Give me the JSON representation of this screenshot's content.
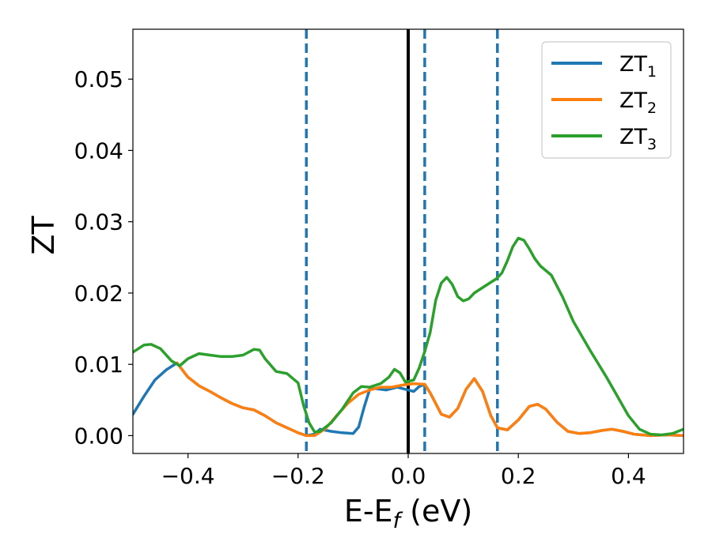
{
  "chart_data": {
    "type": "line",
    "xlabel": {
      "base": "E-E",
      "sub": "f",
      "suffix": " (eV)"
    },
    "ylabel": "ZT",
    "xlim": [
      -0.5,
      0.5
    ],
    "ylim": [
      -0.0025,
      0.057
    ],
    "xticks": [
      -0.4,
      -0.2,
      0.0,
      0.2,
      0.4
    ],
    "xtick_labels": [
      "−0.4",
      "−0.2",
      "0.0",
      "0.2",
      "0.4"
    ],
    "yticks": [
      0.0,
      0.01,
      0.02,
      0.03,
      0.04,
      0.05
    ],
    "ytick_labels": [
      "0.00",
      "0.01",
      "0.02",
      "0.03",
      "0.04",
      "0.05"
    ],
    "grid": false,
    "legend_position": "top-right",
    "vlines": [
      {
        "x": 0.0,
        "style": "solid",
        "color": "#000000"
      },
      {
        "x": -0.185,
        "style": "dashed",
        "color": "#1f77b4"
      },
      {
        "x": 0.03,
        "style": "dashed",
        "color": "#1f77b4"
      },
      {
        "x": 0.162,
        "style": "dashed",
        "color": "#1f77b4"
      }
    ],
    "series": [
      {
        "name": "ZT",
        "sub": "1",
        "color": "#1f77b4",
        "points": [
          [
            -0.5,
            0.003
          ],
          [
            -0.48,
            0.0055
          ],
          [
            -0.46,
            0.0078
          ],
          [
            -0.44,
            0.0092
          ],
          [
            -0.42,
            0.0102
          ],
          [
            -0.4,
            0.0082
          ],
          [
            -0.38,
            0.007
          ],
          [
            -0.36,
            0.0062
          ],
          [
            -0.34,
            0.0053
          ],
          [
            -0.32,
            0.0045
          ],
          [
            -0.3,
            0.0039
          ],
          [
            -0.28,
            0.0036
          ],
          [
            -0.26,
            0.0028
          ],
          [
            -0.24,
            0.0018
          ],
          [
            -0.22,
            0.0011
          ],
          [
            -0.2,
            0.0004
          ],
          [
            -0.185,
            0.0
          ],
          [
            -0.17,
            0.0002
          ],
          [
            -0.16,
            0.0009
          ],
          [
            -0.14,
            0.0006
          ],
          [
            -0.12,
            0.0004
          ],
          [
            -0.1,
            0.0003
          ],
          [
            -0.09,
            0.0012
          ],
          [
            -0.08,
            0.004
          ],
          [
            -0.07,
            0.0065
          ],
          [
            -0.06,
            0.0066
          ],
          [
            -0.04,
            0.0064
          ],
          [
            -0.02,
            0.0068
          ],
          [
            0.0,
            0.0064
          ],
          [
            0.01,
            0.0062
          ],
          [
            0.02,
            0.0069
          ],
          [
            0.03,
            0.0072
          ],
          [
            0.04,
            0.006
          ],
          [
            0.05,
            0.0045
          ],
          [
            0.06,
            0.003
          ],
          [
            0.075,
            0.0026
          ],
          [
            0.09,
            0.0038
          ],
          [
            0.105,
            0.0065
          ],
          [
            0.12,
            0.008
          ],
          [
            0.135,
            0.0062
          ],
          [
            0.15,
            0.0028
          ],
          [
            0.162,
            0.0011
          ],
          [
            0.18,
            0.0008
          ],
          [
            0.2,
            0.0022
          ],
          [
            0.22,
            0.0041
          ],
          [
            0.235,
            0.0044
          ],
          [
            0.25,
            0.0037
          ],
          [
            0.27,
            0.0019
          ],
          [
            0.29,
            0.0006
          ],
          [
            0.31,
            0.0003
          ],
          [
            0.33,
            0.0004
          ],
          [
            0.35,
            0.0007
          ],
          [
            0.37,
            0.0009
          ],
          [
            0.39,
            0.0006
          ],
          [
            0.41,
            0.0002
          ],
          [
            0.44,
            0.0
          ],
          [
            0.47,
            0.0001
          ],
          [
            0.5,
            0.0
          ]
        ]
      },
      {
        "name": "ZT",
        "sub": "2",
        "color": "#ff7f0e",
        "points": [
          [
            -0.42,
            0.0102
          ],
          [
            -0.4,
            0.0082
          ],
          [
            -0.38,
            0.007
          ],
          [
            -0.36,
            0.0062
          ],
          [
            -0.34,
            0.0053
          ],
          [
            -0.32,
            0.0045
          ],
          [
            -0.3,
            0.0039
          ],
          [
            -0.28,
            0.0036
          ],
          [
            -0.26,
            0.0028
          ],
          [
            -0.24,
            0.0018
          ],
          [
            -0.22,
            0.0011
          ],
          [
            -0.2,
            0.0004
          ],
          [
            -0.185,
            0.0
          ],
          [
            -0.17,
            0.0
          ],
          [
            -0.15,
            0.001
          ],
          [
            -0.13,
            0.0028
          ],
          [
            -0.11,
            0.0045
          ],
          [
            -0.09,
            0.0058
          ],
          [
            -0.07,
            0.0064
          ],
          [
            -0.05,
            0.0068
          ],
          [
            -0.03,
            0.0068
          ],
          [
            -0.01,
            0.0071
          ],
          [
            0.01,
            0.0073
          ],
          [
            0.03,
            0.0072
          ],
          [
            0.04,
            0.006
          ],
          [
            0.05,
            0.0045
          ],
          [
            0.06,
            0.003
          ],
          [
            0.075,
            0.0026
          ],
          [
            0.09,
            0.0038
          ],
          [
            0.105,
            0.0065
          ],
          [
            0.12,
            0.008
          ],
          [
            0.135,
            0.0062
          ],
          [
            0.15,
            0.0028
          ],
          [
            0.162,
            0.0011
          ],
          [
            0.18,
            0.0008
          ],
          [
            0.2,
            0.0022
          ],
          [
            0.22,
            0.0041
          ],
          [
            0.235,
            0.0044
          ],
          [
            0.25,
            0.0037
          ],
          [
            0.27,
            0.0019
          ],
          [
            0.29,
            0.0006
          ],
          [
            0.31,
            0.0003
          ],
          [
            0.33,
            0.0004
          ],
          [
            0.35,
            0.0007
          ],
          [
            0.37,
            0.0009
          ],
          [
            0.39,
            0.0006
          ],
          [
            0.41,
            0.0002
          ],
          [
            0.44,
            0.0
          ],
          [
            0.47,
            0.0001
          ],
          [
            0.5,
            0.0
          ]
        ]
      },
      {
        "name": "ZT",
        "sub": "3",
        "color": "#2ca02c",
        "points": [
          [
            -0.5,
            0.0117
          ],
          [
            -0.48,
            0.0127
          ],
          [
            -0.467,
            0.0128
          ],
          [
            -0.45,
            0.0122
          ],
          [
            -0.43,
            0.0105
          ],
          [
            -0.415,
            0.0098
          ],
          [
            -0.4,
            0.0108
          ],
          [
            -0.38,
            0.0115
          ],
          [
            -0.36,
            0.0113
          ],
          [
            -0.34,
            0.0111
          ],
          [
            -0.32,
            0.0111
          ],
          [
            -0.3,
            0.0113
          ],
          [
            -0.28,
            0.0121
          ],
          [
            -0.27,
            0.012
          ],
          [
            -0.26,
            0.0108
          ],
          [
            -0.24,
            0.009
          ],
          [
            -0.22,
            0.0087
          ],
          [
            -0.2,
            0.0074
          ],
          [
            -0.19,
            0.0042
          ],
          [
            -0.18,
            0.0018
          ],
          [
            -0.17,
            0.0005
          ],
          [
            -0.16,
            0.0006
          ],
          [
            -0.14,
            0.0018
          ],
          [
            -0.12,
            0.0037
          ],
          [
            -0.1,
            0.006
          ],
          [
            -0.085,
            0.0069
          ],
          [
            -0.07,
            0.0068
          ],
          [
            -0.05,
            0.0073
          ],
          [
            -0.035,
            0.0082
          ],
          [
            -0.025,
            0.0093
          ],
          [
            -0.015,
            0.0088
          ],
          [
            -0.005,
            0.0075
          ],
          [
            0.01,
            0.0078
          ],
          [
            0.02,
            0.0095
          ],
          [
            0.03,
            0.0118
          ],
          [
            0.04,
            0.0145
          ],
          [
            0.05,
            0.019
          ],
          [
            0.06,
            0.0214
          ],
          [
            0.07,
            0.0222
          ],
          [
            0.08,
            0.0212
          ],
          [
            0.09,
            0.0195
          ],
          [
            0.1,
            0.0189
          ],
          [
            0.11,
            0.0192
          ],
          [
            0.12,
            0.02
          ],
          [
            0.14,
            0.021
          ],
          [
            0.16,
            0.022
          ],
          [
            0.17,
            0.0228
          ],
          [
            0.18,
            0.0245
          ],
          [
            0.19,
            0.0265
          ],
          [
            0.2,
            0.0277
          ],
          [
            0.21,
            0.0274
          ],
          [
            0.22,
            0.0262
          ],
          [
            0.23,
            0.0248
          ],
          [
            0.24,
            0.0238
          ],
          [
            0.26,
            0.0225
          ],
          [
            0.28,
            0.0195
          ],
          [
            0.3,
            0.016
          ],
          [
            0.33,
            0.012
          ],
          [
            0.36,
            0.0082
          ],
          [
            0.38,
            0.0055
          ],
          [
            0.4,
            0.0028
          ],
          [
            0.42,
            0.0009
          ],
          [
            0.44,
            0.0002
          ],
          [
            0.46,
            0.0001
          ],
          [
            0.48,
            0.0003
          ],
          [
            0.5,
            0.0009
          ]
        ]
      }
    ]
  }
}
